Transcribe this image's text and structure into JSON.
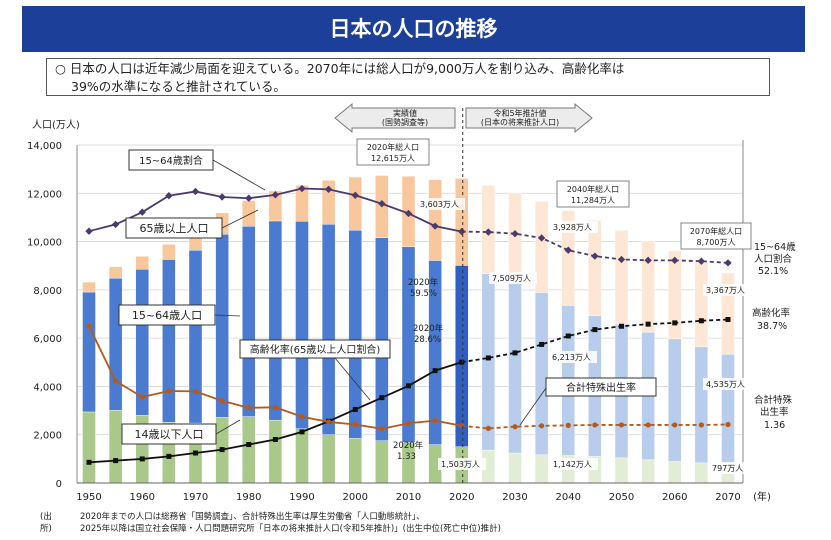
{
  "title": "日本の人口の推移",
  "summary": {
    "line1": "○ 日本の人口は近年減少局面を迎えている。2070年には総人口が9,000万人を割り込み、高齢化率は",
    "line2": "39%の水準になると推計されている。"
  },
  "source": {
    "label": "(出所)",
    "line1": "2020年までの人口は総務省「国勢調査」、合計特殊出生率は厚生労働省「人口動態統計」、",
    "line2": "2025年以降は国立社会保障・人口問題研究所「日本の将来推計人口(令和5年推計)」(出生中位(死亡中位)推計)"
  },
  "chart_data": {
    "type": "bar",
    "ylabel": "人口(万人)",
    "xlabel": "(年)",
    "ylim": [
      0,
      14000
    ],
    "yticks": [
      "0",
      "2,000",
      "4,000",
      "6,000",
      "8,000",
      "10,000",
      "12,000",
      "14,000"
    ],
    "xticks": [
      "1950",
      "1960",
      "1970",
      "1980",
      "1990",
      "2000",
      "2010",
      "2020",
      "2030",
      "2040",
      "2050",
      "2060",
      "2070"
    ],
    "years": [
      1950,
      1955,
      1960,
      1965,
      1970,
      1975,
      1980,
      1985,
      1990,
      1995,
      2000,
      2005,
      2010,
      2015,
      2020,
      2025,
      2030,
      2035,
      2040,
      2045,
      2050,
      2055,
      2060,
      2065,
      2070
    ],
    "series": [
      {
        "name": "14歳以下人口",
        "values": [
          2943,
          3012,
          2807,
          2517,
          2482,
          2722,
          2751,
          2603,
          2249,
          2001,
          1847,
          1752,
          1680,
          1589,
          1503,
          1363,
          1240,
          1169,
          1142,
          1103,
          1041,
          966,
          893,
          834,
          797
        ]
      },
      {
        "name": "15~64歳人口",
        "values": [
          4966,
          5473,
          6047,
          6744,
          7157,
          7581,
          7883,
          8251,
          8590,
          8716,
          8622,
          8409,
          8103,
          7629,
          7509,
          7310,
          7076,
          6722,
          6213,
          5832,
          5540,
          5284,
          5078,
          4809,
          4535
        ]
      },
      {
        "name": "65歳以上人口",
        "values": [
          411,
          475,
          535,
          624,
          733,
          887,
          1065,
          1247,
          1489,
          1826,
          2204,
          2576,
          2925,
          3347,
          3603,
          3653,
          3696,
          3773,
          3928,
          3945,
          3888,
          3777,
          3644,
          3505,
          3367
        ]
      }
    ],
    "lines": [
      {
        "name": "15~64歳割合",
        "values": [
          59.6,
          61.2,
          64.1,
          68.0,
          69.0,
          67.7,
          67.4,
          68.2,
          69.7,
          69.5,
          68.1,
          66.1,
          63.8,
          60.8,
          59.5,
          59.4,
          59.0,
          58.0,
          55.1,
          53.7,
          52.9,
          52.7,
          52.7,
          52.5,
          52.1
        ]
      },
      {
        "name": "高齢化率(65歳以上人口割合)",
        "values": [
          4.9,
          5.3,
          5.7,
          6.3,
          7.1,
          7.9,
          9.1,
          10.3,
          12.1,
          14.6,
          17.4,
          20.2,
          23.0,
          26.6,
          28.6,
          29.6,
          30.8,
          32.8,
          34.8,
          36.3,
          37.1,
          37.6,
          37.9,
          38.4,
          38.7
        ]
      },
      {
        "name": "合計特殊出生率",
        "values": [
          3.65,
          2.37,
          2.0,
          2.14,
          2.13,
          1.91,
          1.75,
          1.76,
          1.54,
          1.42,
          1.36,
          1.26,
          1.39,
          1.45,
          1.33,
          1.27,
          1.31,
          1.33,
          1.34,
          1.35,
          1.35,
          1.35,
          1.35,
          1.35,
          1.36
        ]
      }
    ],
    "labels": {
      "series_pop14": "14歳以下人口",
      "series_pop1564": "15~64歳人口",
      "series_pop65": "65歳以上人口",
      "line_ratio1564": "15~64歳割合",
      "line_aging": "高齢化率(65歳以上人口割合)",
      "line_tfr": "合計特殊出生率",
      "actual_header_1": "実績値",
      "actual_header_2": "(国勢調査等)",
      "projection_header_1": "令和5年推計値",
      "projection_header_2": "(日本の将来推計人口)"
    },
    "annotations": {
      "total2020_1": "2020年総人口",
      "total2020_2": "12,615万人",
      "total2040_1": "2040年総人口",
      "total2040_2": "11,284万人",
      "total2070_1": "2070年総人口",
      "total2070_2": "8,700万人",
      "ratio2020_1": "2020年",
      "ratio2020_2": "59.5%",
      "aging2020_1": "2020年",
      "aging2020_2": "28.6%",
      "tfr2020_1": "2020年",
      "tfr2020_2": "1.33",
      "v2020_65": "3,603万人",
      "v2020_1564": "7,509万人",
      "v2020_14": "1,503万人",
      "v2040_65": "3,928万人",
      "v2040_1564": "6,213万人",
      "v2040_14": "1,142万人",
      "v2070_65": "3,367万人",
      "v2070_1564": "4,535万人",
      "v2070_14": "797万人",
      "right_ratio_1": "15~64歳",
      "right_ratio_2": "人口割合",
      "right_ratio_3": "52.1%",
      "right_aging_1": "高齢化率",
      "right_aging_2": "38.7%",
      "right_tfr_1": "合計特殊",
      "right_tfr_2": "出生率",
      "right_tfr_3": "1.36"
    },
    "colors": {
      "pop14_actual": "#a9c98a",
      "pop14_proj": "#e3edd5",
      "pop1564_actual": "#4a7bd0",
      "pop1564_proj": "#b8cdec",
      "pop65_actual": "#f8c89c",
      "pop65_proj": "#fde6d3",
      "ratio_line": "#4b3a6e",
      "aging_line": "#111111",
      "tfr_line": "#b45a1c",
      "highlight_bar": "#2f5fc4"
    }
  }
}
